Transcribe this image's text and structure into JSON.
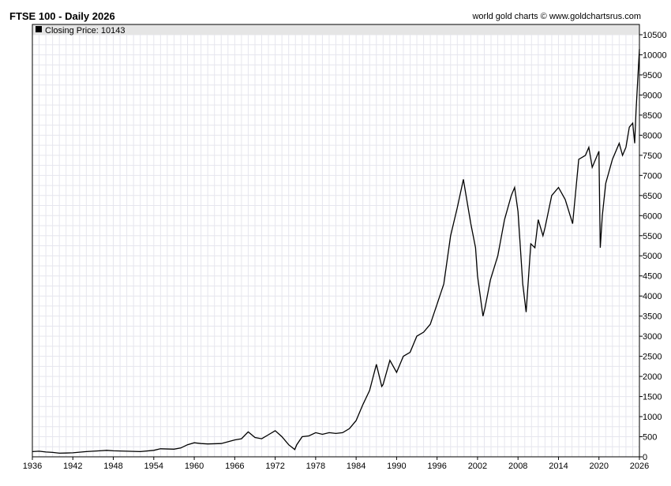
{
  "header": {
    "title": "FTSE 100 - Daily 2026",
    "credit": "world gold charts © www.goldchartsrus.com"
  },
  "legend": {
    "label": "Closing Price:",
    "value": "10143"
  },
  "colors": {
    "line": "#000000",
    "grid": "#e6e6ee",
    "legend_bg": "#e5e5e5",
    "axis": "#000000"
  },
  "chart_data": {
    "type": "line",
    "title": "FTSE 100 - Daily 2026",
    "xlabel": "",
    "ylabel": "",
    "xlim": [
      1936,
      2026
    ],
    "ylim": [
      0,
      10500
    ],
    "y_axis_position": "right",
    "grid": true,
    "legend_position": "top-left",
    "x_ticks": [
      1936,
      1942,
      1948,
      1954,
      1960,
      1966,
      1972,
      1978,
      1984,
      1990,
      1996,
      2002,
      2008,
      2014,
      2020,
      2026
    ],
    "y_ticks": [
      0,
      500,
      1000,
      1500,
      2000,
      2500,
      3000,
      3500,
      4000,
      4500,
      5000,
      5500,
      6000,
      6500,
      7000,
      7500,
      8000,
      8500,
      9000,
      9500,
      10000,
      10500
    ],
    "series": [
      {
        "name": "Closing Price",
        "x": [
          1936,
          1937,
          1938,
          1939,
          1940,
          1941,
          1942,
          1944,
          1946,
          1947,
          1948,
          1950,
          1952,
          1954,
          1955,
          1957,
          1958,
          1959,
          1960,
          1961,
          1962,
          1964,
          1966,
          1967,
          1968,
          1969,
          1970,
          1971,
          1972,
          1973,
          1974,
          1974.9,
          1975.2,
          1976,
          1977,
          1978,
          1979,
          1980,
          1981,
          1982,
          1983,
          1984,
          1985,
          1986,
          1987,
          1987.8,
          1988,
          1989,
          1990,
          1991,
          1992,
          1993,
          1994,
          1995,
          1996,
          1997,
          1998,
          1999,
          1999.9,
          2000.5,
          2001,
          2001.7,
          2002,
          2002.8,
          2003.1,
          2003.9,
          2005,
          2006,
          2007,
          2007.5,
          2008,
          2008.7,
          2009.2,
          2009.9,
          2010.5,
          2011,
          2011.7,
          2012,
          2013,
          2014,
          2015,
          2016.1,
          2016.5,
          2017,
          2018,
          2018.5,
          2019,
          2020.0,
          2020.2,
          2020.5,
          2021,
          2022,
          2023,
          2023.5,
          2024,
          2024.5,
          2025,
          2025.3,
          2025.5,
          2026
        ],
        "values": [
          130,
          140,
          120,
          110,
          90,
          95,
          100,
          130,
          150,
          160,
          150,
          140,
          130,
          160,
          200,
          190,
          220,
          300,
          350,
          330,
          320,
          330,
          420,
          450,
          620,
          480,
          450,
          550,
          650,
          500,
          300,
          180,
          300,
          500,
          520,
          600,
          560,
          600,
          580,
          600,
          700,
          900,
          1300,
          1650,
          2300,
          1750,
          1800,
          2400,
          2100,
          2500,
          2600,
          3000,
          3100,
          3300,
          3800,
          4300,
          5500,
          6200,
          6900,
          6300,
          5800,
          5200,
          4500,
          3500,
          3700,
          4400,
          5000,
          5900,
          6500,
          6700,
          6100,
          4300,
          3600,
          5300,
          5200,
          5900,
          5500,
          5700,
          6500,
          6700,
          6400,
          5800,
          6500,
          7400,
          7500,
          7700,
          7200,
          7600,
          5200,
          6000,
          6800,
          7400,
          7800,
          7500,
          7700,
          8200,
          8300,
          7800,
          8600,
          10143
        ]
      }
    ]
  }
}
